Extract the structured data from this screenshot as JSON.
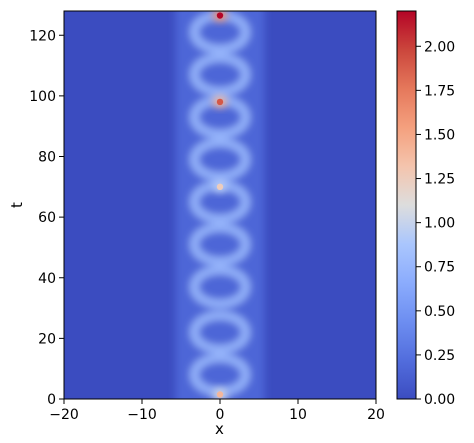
{
  "chart_data": {
    "type": "heatmap",
    "title": "",
    "xlabel": "x",
    "ylabel": "t",
    "xlim": [
      -20,
      20
    ],
    "ylim": [
      0,
      128
    ],
    "x_ticks": [
      -20,
      -10,
      0,
      10,
      20
    ],
    "x_tick_labels": [
      "−20",
      "−10",
      "0",
      "10",
      "20"
    ],
    "y_ticks": [
      0,
      20,
      40,
      60,
      80,
      100,
      120
    ],
    "y_tick_labels": [
      "0",
      "20",
      "40",
      "60",
      "80",
      "100",
      "120"
    ],
    "colorbar": {
      "colormap": "coolwarm",
      "range": [
        0,
        2.2
      ],
      "ticks": [
        0.0,
        0.25,
        0.5,
        0.75,
        1.0,
        1.25,
        1.5,
        1.75,
        2.0
      ],
      "tick_labels": [
        "0.00",
        "0.25",
        "0.50",
        "0.75",
        "1.00",
        "1.25",
        "1.50",
        "1.75",
        "2.00"
      ]
    },
    "features": {
      "breather_center_x": 0,
      "ring_radius_x": 3,
      "ring_level": 0.75,
      "ring_centers_t": [
        8,
        22,
        37,
        51,
        65,
        79,
        93,
        107,
        121
      ],
      "peaks": [
        {
          "t": 126.5,
          "value": 2.2
        },
        {
          "t": 98,
          "value": 1.9
        },
        {
          "t": 70,
          "value": 1.25
        },
        {
          "t": 1.5,
          "value": 1.4
        }
      ]
    }
  }
}
